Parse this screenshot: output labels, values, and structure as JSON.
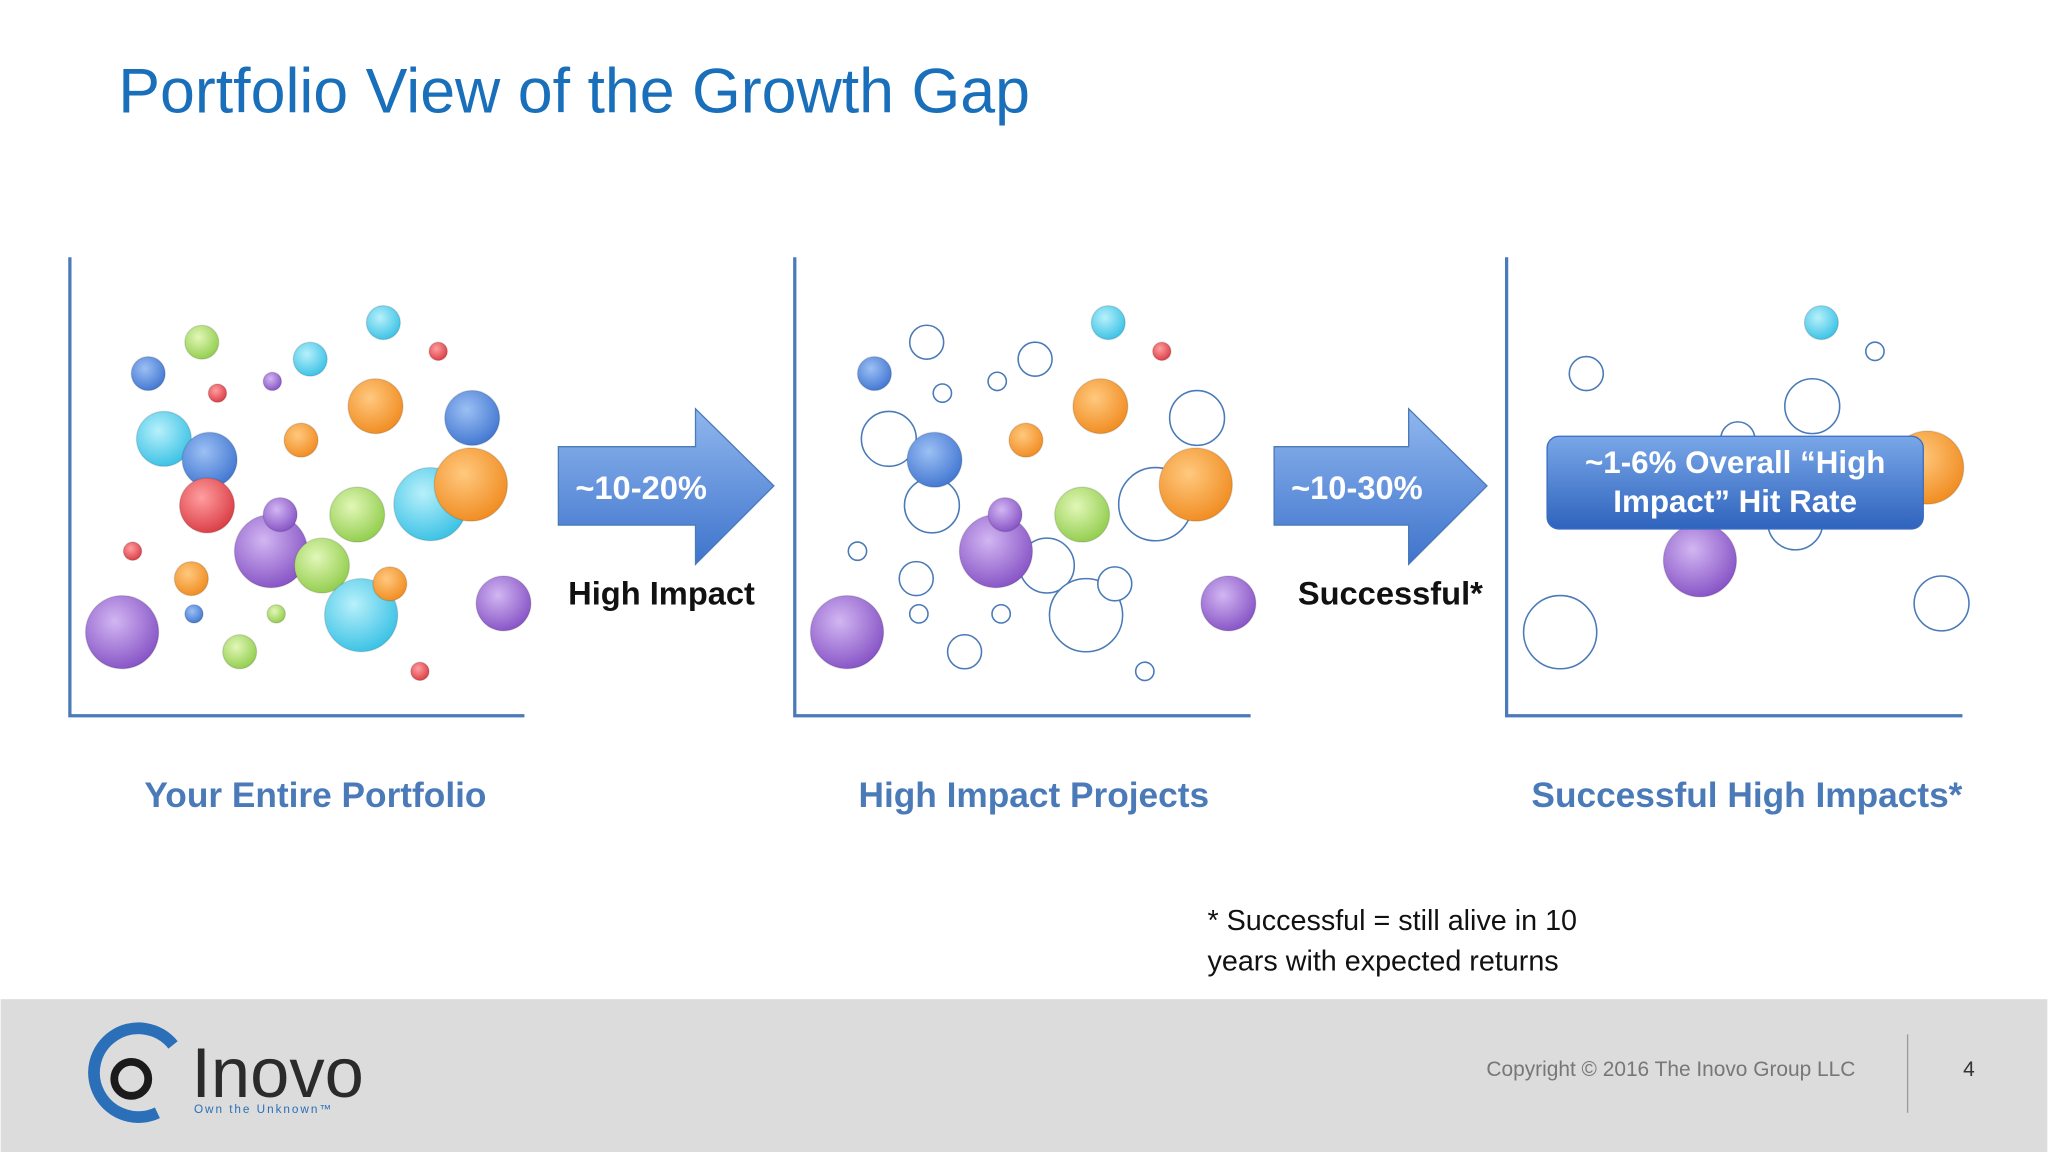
{
  "header": {
    "title": "Portfolio View of the Growth Gap"
  },
  "arrows": [
    {
      "percent": "~10-20%",
      "label": "High Impact"
    },
    {
      "percent": "~10-30%",
      "label": "Successful*"
    }
  ],
  "callout": {
    "lines": [
      "~1-6% Overall “High",
      "Impact” Hit Rate"
    ]
  },
  "panels": [
    "Your Entire Portfolio",
    "High Impact Projects",
    "Successful High Impacts*"
  ],
  "footnote": {
    "lines": [
      "* Successful = still alive in 10",
      "years with expected returns"
    ]
  },
  "footer": {
    "logo": "Inovo",
    "tagline": "Own the Unknown™",
    "copyright": "Copyright © 2016 The Inovo Group LLC",
    "page": "4"
  }
}
